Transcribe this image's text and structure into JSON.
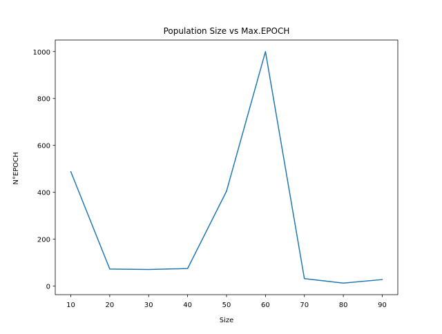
{
  "chart_data": {
    "type": "line",
    "title": "Population Size vs Max.EPOCH",
    "xlabel": "Size",
    "ylabel": "N°EPOCH",
    "x": [
      10,
      20,
      30,
      40,
      50,
      60,
      70,
      80,
      90
    ],
    "series": [
      {
        "values": [
          488,
          73,
          71,
          75,
          405,
          1000,
          32,
          13,
          28
        ],
        "color": "#1f77b4"
      }
    ],
    "xticks": [
      10,
      20,
      30,
      40,
      50,
      60,
      70,
      80,
      90
    ],
    "yticks": [
      0,
      200,
      400,
      600,
      800,
      1000
    ],
    "xlim": [
      6,
      94
    ],
    "ylim": [
      -36.35,
      1049.35
    ],
    "grid": false,
    "legend": "none"
  }
}
